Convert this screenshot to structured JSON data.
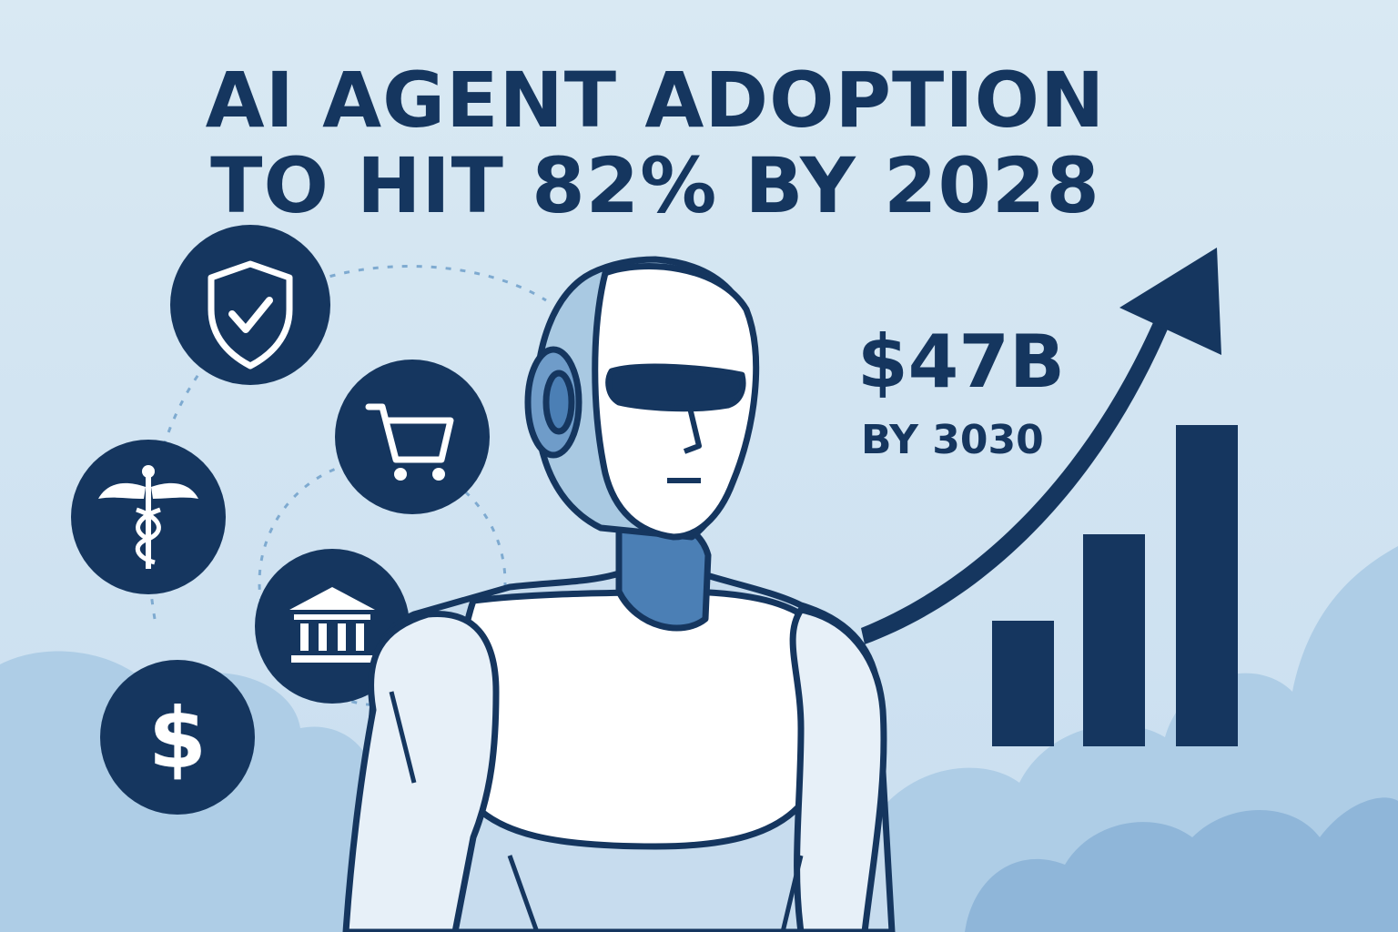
{
  "headline": {
    "line1": "AI AGENT ADOPTION",
    "line2": "TO HIT 82% BY 2028"
  },
  "stat": {
    "value": "$47B",
    "caption": "BY 3030"
  },
  "icons": [
    "shield-check-icon",
    "shopping-cart-icon",
    "caduceus-icon",
    "bank-icon",
    "dollar-icon"
  ],
  "colors": {
    "navy": "#15365f",
    "background": "#d6e7f2",
    "cloud": "#a9c9e2",
    "robot_shell": "#ffffff",
    "robot_shade": "#c7dcee",
    "robot_accent": "#4b7fb5"
  }
}
